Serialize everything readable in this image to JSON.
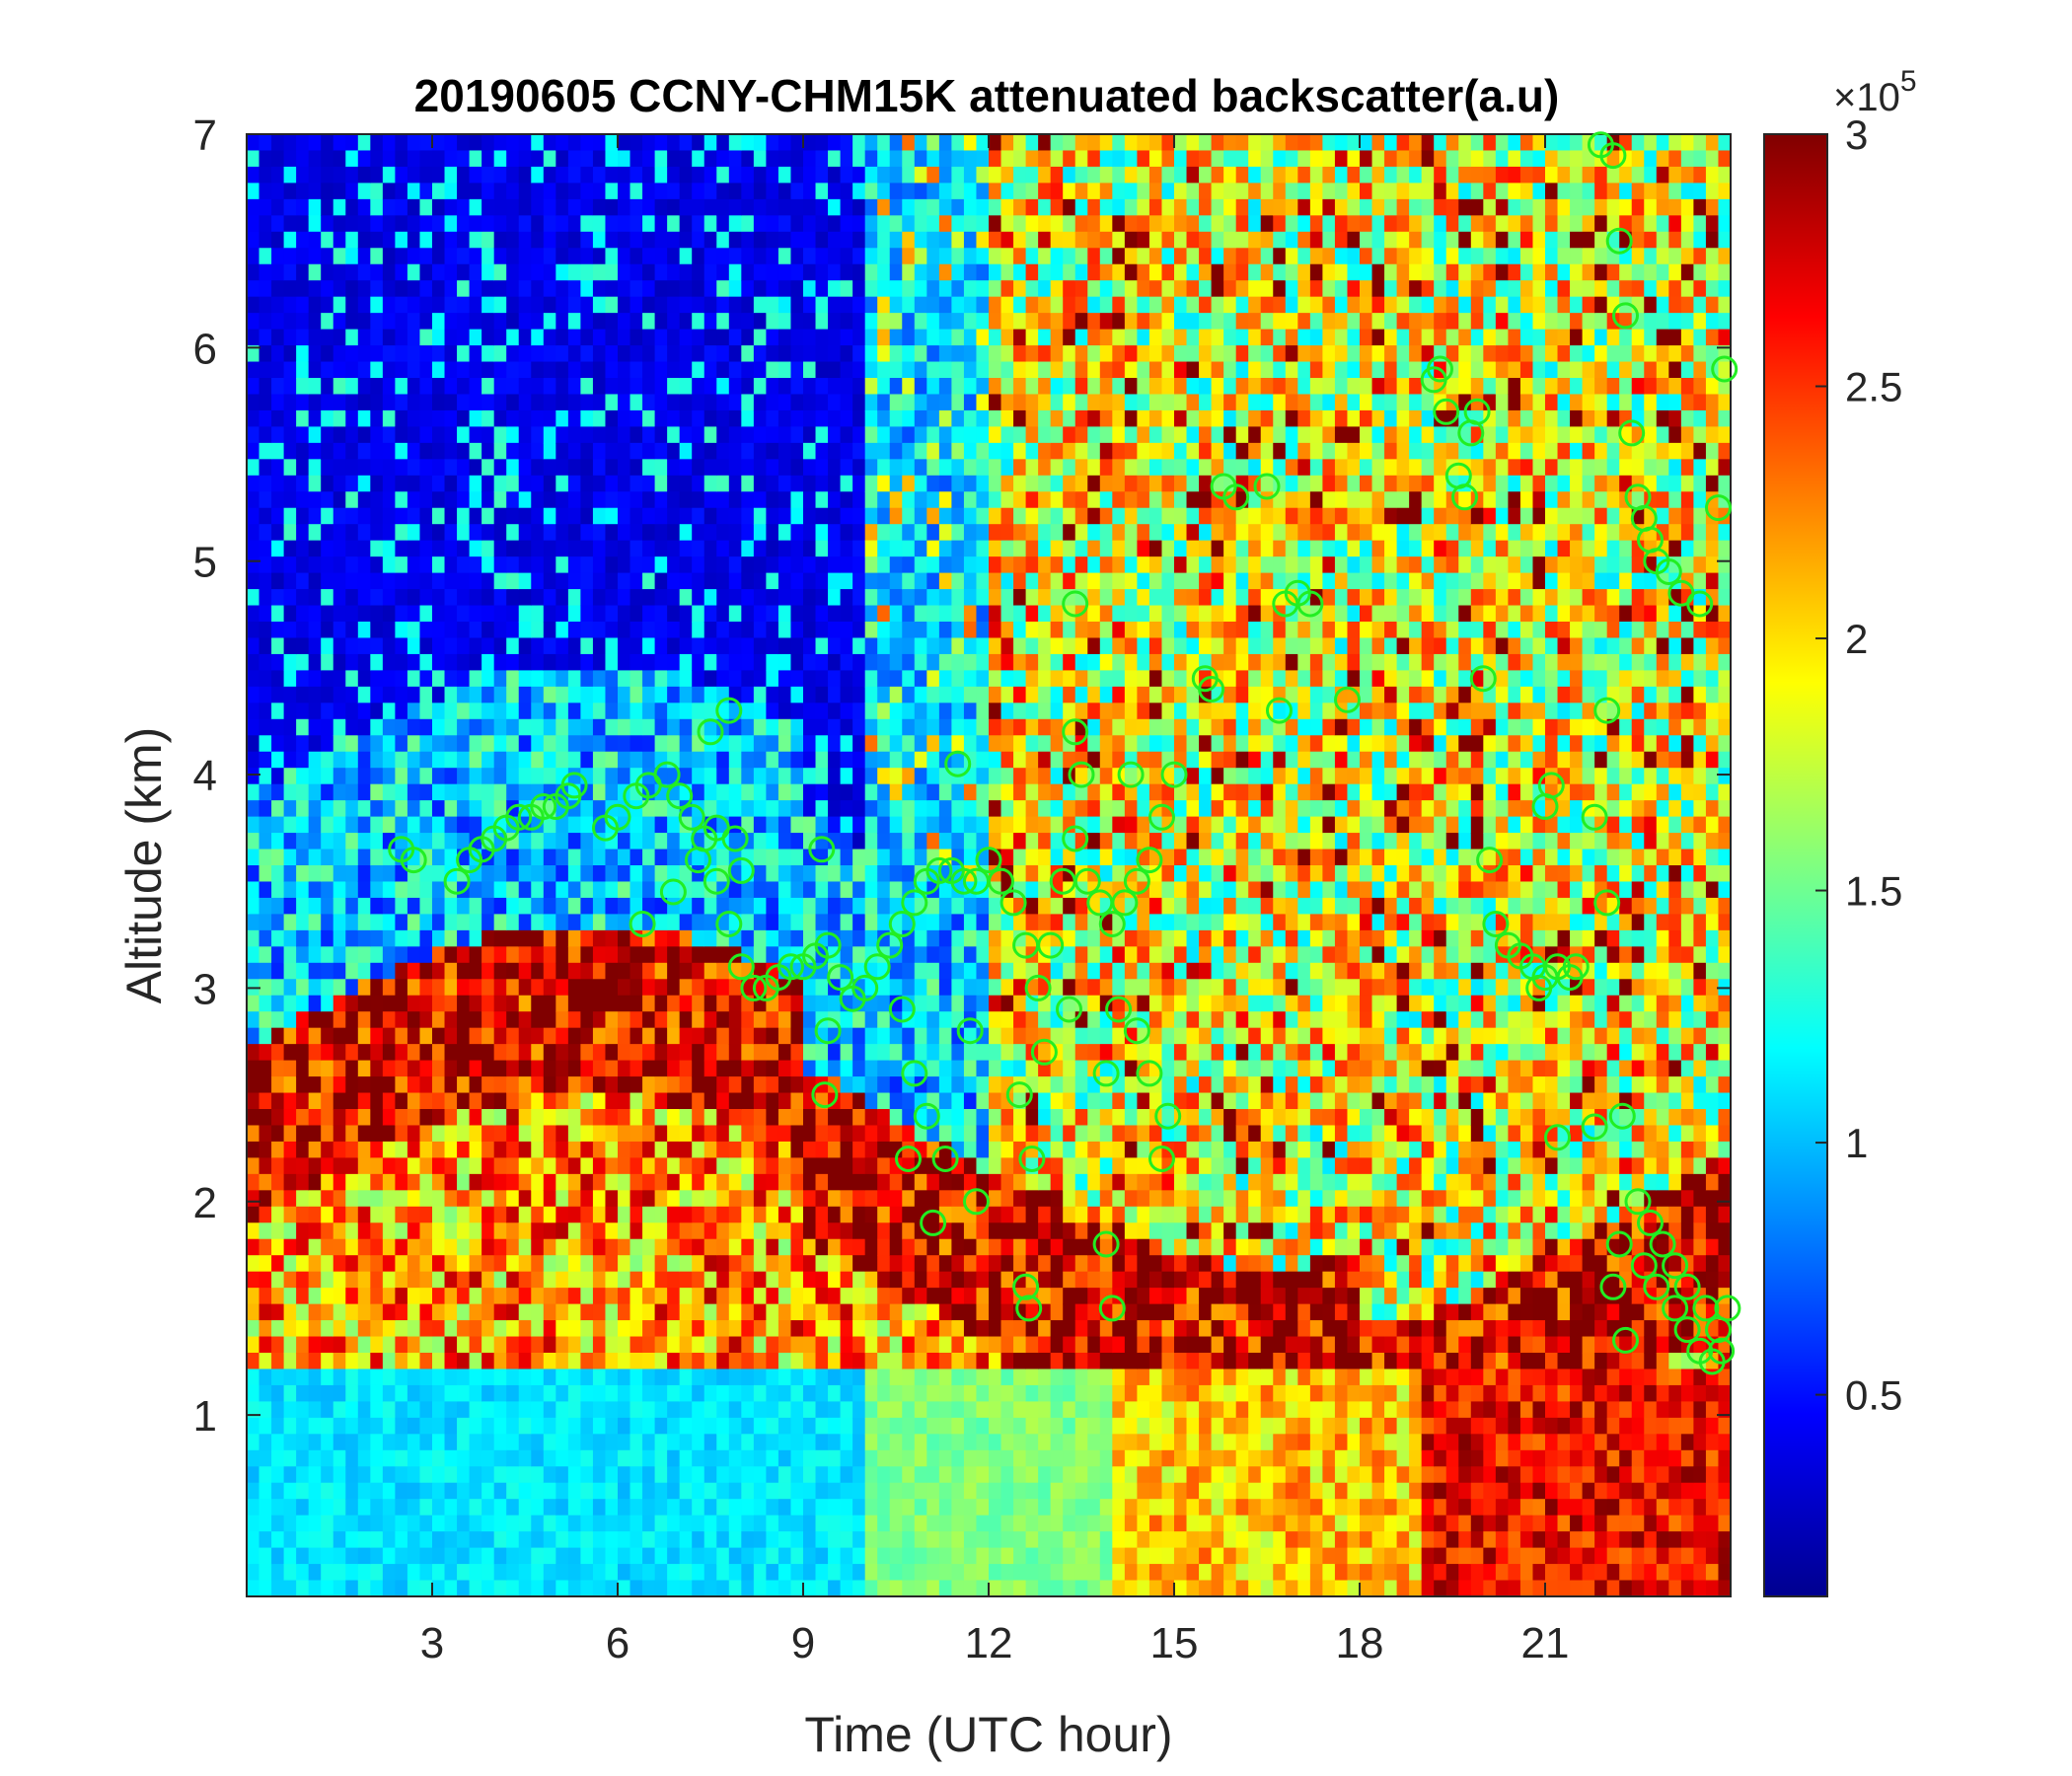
{
  "chart_data": {
    "type": "heatmap",
    "title": "20190605 CCNY-CHM15K attenuated backscatter(a.u)",
    "xlabel": "Time (UTC hour)",
    "ylabel": "Altitude (km)",
    "xlim": [
      0,
      24
    ],
    "ylim": [
      0.15,
      7
    ],
    "xticks": [
      3,
      6,
      9,
      12,
      15,
      18,
      21
    ],
    "xtick_labels": [
      "3",
      "6",
      "9",
      "12",
      "15",
      "18",
      "21"
    ],
    "yticks": [
      1,
      2,
      3,
      4,
      5,
      6,
      7
    ],
    "ytick_labels": [
      "1",
      "2",
      "3",
      "4",
      "5",
      "6",
      "7"
    ],
    "colorbar": {
      "colormap": "jet",
      "clim": [
        0.1,
        3
      ],
      "ticks": [
        0.5,
        1,
        1.5,
        2,
        2.5,
        3
      ],
      "tick_labels": [
        "0.5",
        "1",
        "1.5",
        "2",
        "2.5",
        "3"
      ],
      "multiplier_prefix": "×10",
      "multiplier_exponent": "5"
    },
    "colors": {
      "marker": "#22ee22",
      "jet": [
        "#00008f",
        "#0000ff",
        "#0080ff",
        "#00ffff",
        "#80ff80",
        "#ffff00",
        "#ff8000",
        "#ff0000",
        "#800000"
      ]
    },
    "marker_style": "open-circle",
    "marker_series": {
      "x": [
        2.5,
        2.7,
        3.4,
        3.6,
        3.8,
        4.0,
        4.2,
        4.4,
        4.6,
        4.8,
        5.0,
        5.2,
        5.3,
        5.8,
        6.0,
        6.3,
        6.5,
        6.8,
        7.0,
        7.2,
        7.4,
        7.6,
        7.8,
        8.0,
        8.2,
        8.4,
        8.6,
        8.8,
        9.0,
        9.2,
        9.4,
        9.6,
        9.8,
        10.0,
        10.2,
        10.4,
        10.6,
        10.8,
        11.0,
        11.2,
        11.4,
        11.6,
        11.8,
        12.0,
        12.2,
        12.4,
        12.6,
        12.8,
        13.0,
        13.2,
        13.4,
        13.6,
        13.8,
        14.0,
        14.2,
        14.4,
        14.6,
        14.8,
        15.0,
        6.4,
        6.9,
        7.3,
        7.6,
        7.9,
        8.0,
        9.3,
        9.4,
        9.35,
        10.6,
        10.8,
        11.0,
        11.3,
        11.7,
        12.5,
        12.7,
        12.9,
        13.3,
        13.4,
        13.5,
        13.9,
        14.1,
        14.4,
        14.6,
        14.9,
        10.7,
        11.1,
        11.8,
        12.6,
        12.65,
        13.9,
        14.0,
        14.8,
        11.5,
        7.5,
        7.8,
        13.4,
        14.3,
        15.5,
        15.6,
        15.8,
        16.0,
        16.5,
        16.7,
        16.8,
        17.0,
        17.2,
        17.8,
        19.2,
        19.3,
        19.4,
        19.6,
        19.7,
        19.8,
        19.9,
        20.0,
        20.1,
        20.2,
        20.4,
        20.6,
        20.8,
        20.9,
        21.0,
        21.2,
        21.4,
        21.5,
        21.0,
        21.1,
        21.8,
        21.9,
        22.1,
        22.2,
        22.3,
        22.4,
        22.5,
        22.6,
        22.7,
        22.8,
        23.0,
        23.2,
        23.5,
        23.8,
        23.9,
        22.0,
        22.2,
        22.6,
        22.8,
        23.1,
        23.3,
        23.5,
        23.7,
        23.85,
        22.3,
        22.5,
        22.7,
        22.9,
        23.1,
        23.3,
        23.6,
        23.8,
        23.95,
        22.1,
        22.25,
        21.2,
        21.8,
        22.0
      ],
      "y": [
        3.65,
        3.6,
        3.5,
        3.6,
        3.65,
        3.7,
        3.75,
        3.8,
        3.8,
        3.85,
        3.85,
        3.9,
        3.95,
        3.75,
        3.8,
        3.9,
        3.95,
        4.0,
        3.9,
        3.8,
        3.7,
        3.5,
        3.3,
        3.1,
        3.0,
        3.0,
        3.05,
        3.1,
        3.1,
        3.15,
        3.2,
        3.05,
        2.95,
        3.0,
        3.1,
        3.2,
        3.3,
        3.4,
        3.5,
        3.55,
        3.55,
        3.5,
        3.5,
        3.6,
        3.5,
        3.4,
        3.2,
        3.0,
        3.2,
        3.5,
        3.7,
        3.5,
        3.4,
        3.3,
        3.4,
        3.5,
        3.6,
        3.8,
        4.0,
        3.3,
        3.45,
        3.6,
        3.75,
        3.7,
        3.55,
        3.65,
        2.8,
        2.5,
        2.9,
        2.6,
        2.4,
        2.2,
        2.8,
        2.5,
        2.2,
        2.7,
        2.9,
        4.2,
        4.0,
        2.6,
        2.9,
        2.8,
        2.6,
        2.4,
        2.2,
        1.9,
        2.0,
        1.6,
        1.5,
        1.8,
        1.5,
        2.2,
        4.05,
        4.2,
        4.3,
        4.8,
        4.0,
        4.45,
        4.4,
        5.35,
        5.3,
        5.35,
        4.3,
        4.8,
        4.85,
        4.8,
        4.35,
        5.85,
        5.9,
        5.7,
        5.4,
        5.3,
        5.6,
        5.7,
        4.45,
        3.6,
        3.3,
        3.2,
        3.15,
        3.1,
        3.0,
        3.05,
        3.1,
        3.05,
        3.1,
        3.85,
        3.95,
        3.8,
        6.95,
        6.9,
        6.5,
        6.15,
        5.6,
        5.3,
        5.2,
        5.1,
        5.0,
        4.95,
        4.85,
        4.8,
        5.25,
        5.9,
        4.3,
        1.8,
        1.7,
        1.6,
        1.5,
        1.4,
        1.3,
        1.25,
        1.3,
        1.35,
        2.0,
        1.9,
        1.8,
        1.7,
        1.6,
        1.5,
        1.4,
        1.5,
        1.6,
        2.4,
        2.3,
        2.35,
        3.4,
        3.8
      ]
    }
  }
}
